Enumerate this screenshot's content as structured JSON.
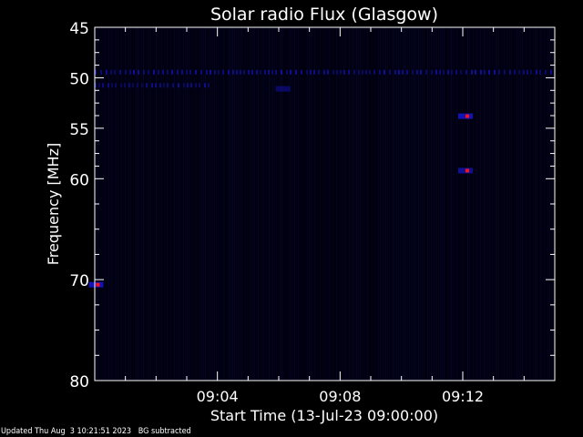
{
  "chart_data": {
    "type": "heatmap",
    "title": "Solar radio Flux (Glasgow)",
    "xlabel": "Start Time (13-Jul-23 09:00:00)",
    "ylabel": "Frequency [MHz]",
    "xlim": [
      "09:00",
      "09:15"
    ],
    "ylim": [
      45,
      80
    ],
    "y_reversed": true,
    "xticks": [
      "09:04",
      "09:08",
      "09:12"
    ],
    "yticks": [
      "45",
      "50",
      "55",
      "60",
      "70",
      "80"
    ],
    "colors": {
      "background": "#000010",
      "band": "#1a1aff",
      "peak": "#ff1010"
    },
    "features": [
      {
        "kind": "band",
        "freq_mhz": 49.4,
        "from": "09:00",
        "to": "09:15",
        "intensity": 0.6
      },
      {
        "kind": "band",
        "freq_mhz": 50.7,
        "from": "09:00",
        "to": "09:03.7",
        "intensity": 0.5
      },
      {
        "kind": "spot",
        "freq_mhz": 53.8,
        "time": "09:12.15",
        "intensity": 1.0
      },
      {
        "kind": "spot",
        "freq_mhz": 59.2,
        "time": "09:12.15",
        "intensity": 0.8
      },
      {
        "kind": "spot",
        "freq_mhz": 70.5,
        "time": "09:00.1",
        "intensity": 1.0
      },
      {
        "kind": "spot",
        "freq_mhz": 51.1,
        "time": "09:06.2",
        "intensity": 0.5
      }
    ]
  },
  "footer": {
    "updated": "Updated Thu Aug  3 10:21:51 2023",
    "note": "BG subtracted"
  }
}
